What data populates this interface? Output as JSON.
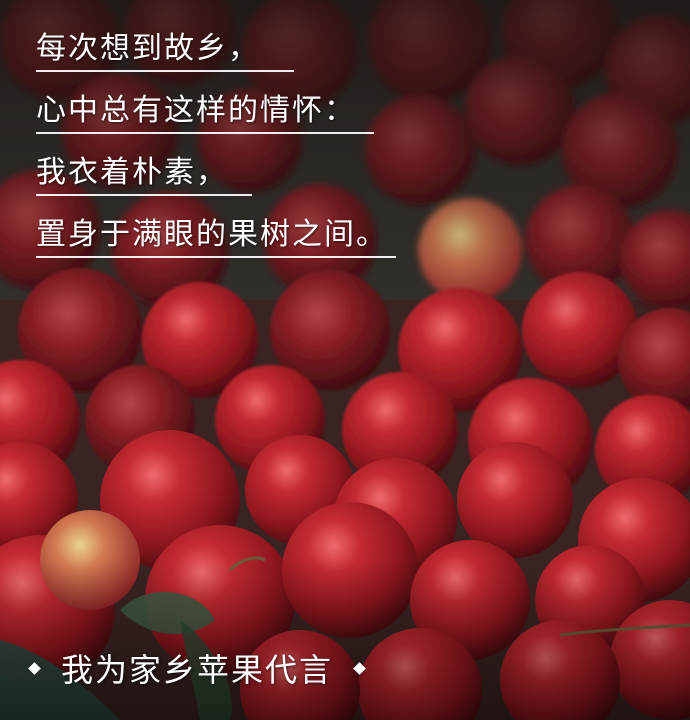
{
  "poem": {
    "lines": [
      "每次想到故乡，",
      "心中总有这样的情怀：",
      "我衣着朴素，",
      "置身于满眼的果树之间。"
    ]
  },
  "caption": {
    "text": "我为家乡苹果代言",
    "bullet_icon": "diamond-icon"
  },
  "colors": {
    "apple_red": "#b3202a",
    "apple_highlight": "#e2525a",
    "apple_dark": "#5e1218",
    "text": "#ffffff",
    "leaf": "#2f4a34"
  }
}
